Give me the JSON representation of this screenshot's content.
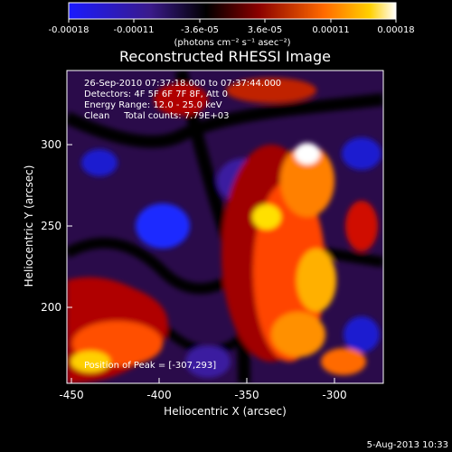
{
  "colorbar": {
    "tick_labels": [
      "-0.00018",
      "-0.00011",
      "-3.6e-05",
      "3.6e-05",
      "0.00011",
      "0.00018"
    ],
    "units": "(photons cm⁻² s⁻¹ asec⁻²)",
    "colors": [
      "#1a1aff",
      "#2a1060",
      "#000000",
      "#8a0000",
      "#ff6a00",
      "#ffffff"
    ]
  },
  "plot": {
    "title": "Reconstructed RHESSI Image",
    "xlabel": "Heliocentric X (arcsec)",
    "ylabel": "Heliocentric Y (arcsec)",
    "x_ticks": [
      "-450",
      "-400",
      "-350",
      "-300"
    ],
    "y_ticks": [
      "200",
      "250",
      "300"
    ]
  },
  "annotations": {
    "time_range": "26-Sep-2010 07:37:18.000 to 07:37:44.000",
    "detectors": "Detectors: 4F 5F 6F 7F 8F, Att 0",
    "energy": "Energy Range: 12.0 - 25.0 keV",
    "clean_total": "Clean     Total counts: 7.79E+03",
    "peak": "Position of Peak = [-307,293]"
  },
  "footer": {
    "date": "5-Aug-2013 10:33"
  }
}
